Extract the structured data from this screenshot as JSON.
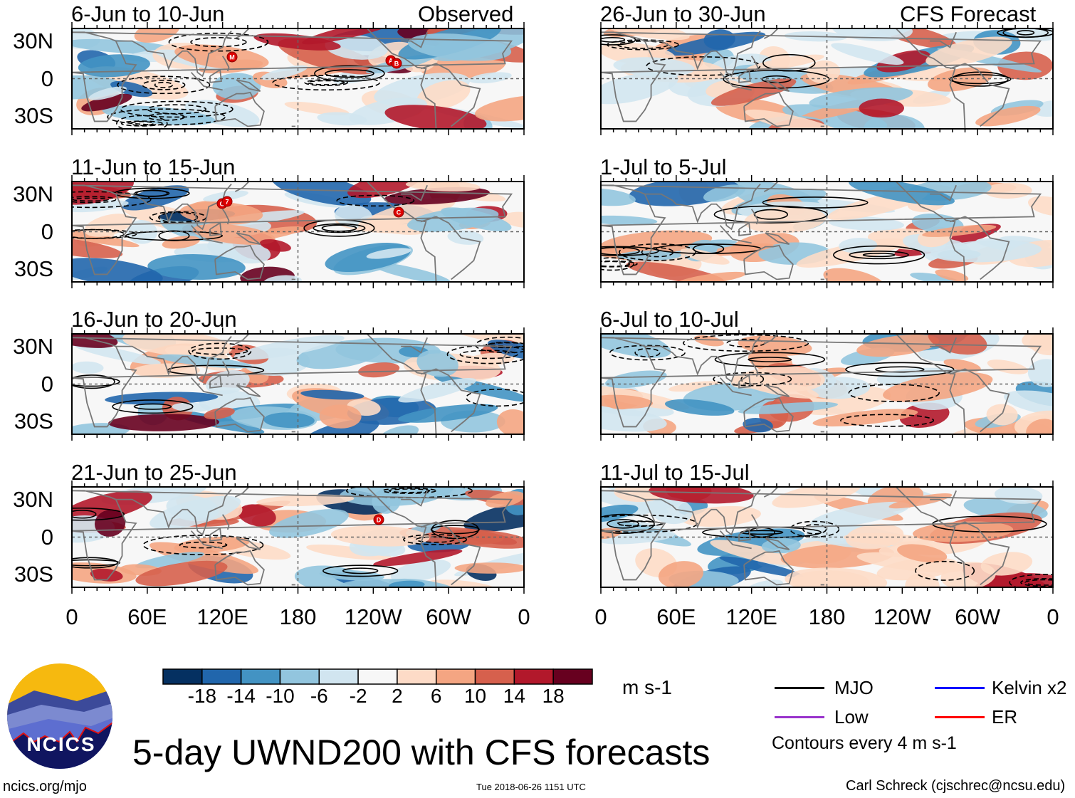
{
  "chart_data": {
    "type": "heatmap",
    "title": "5-day UWND200 with CFS forecasts",
    "variable": "UWND200",
    "units": "m s-1",
    "columns": [
      {
        "label": "Observed",
        "panels": [
          {
            "title": "6-Jun to 10-Jun",
            "storms": [
              "M",
              "A",
              "B"
            ]
          },
          {
            "title": "11-Jun to 15-Jun",
            "storms": [
              "G",
              "7",
              "C"
            ]
          },
          {
            "title": "16-Jun to 20-Jun",
            "storms": []
          },
          {
            "title": "21-Jun to 25-Jun",
            "storms": [
              "D"
            ]
          }
        ]
      },
      {
        "label": "CFS Forecast",
        "panels": [
          {
            "title": "26-Jun to 30-Jun",
            "storms": []
          },
          {
            "title": "1-Jul to 5-Jul",
            "storms": []
          },
          {
            "title": "6-Jul to 10-Jul",
            "storms": []
          },
          {
            "title": "11-Jul to 15-Jul",
            "storms": []
          }
        ]
      }
    ],
    "y_tick_labels": [
      "30N",
      "0",
      "30S"
    ],
    "x_tick_labels": [
      "0",
      "60E",
      "120E",
      "180",
      "120W",
      "60W",
      "0"
    ],
    "colorbar": {
      "labels": [
        "-18",
        "-14",
        "-10",
        "-6",
        "-2",
        "2",
        "6",
        "10",
        "14",
        "18"
      ],
      "colors": [
        "#053061",
        "#2166ac",
        "#4393c3",
        "#92c5de",
        "#d1e5f0",
        "#f7f7f7",
        "#fddbc7",
        "#f4a582",
        "#d6604d",
        "#b2182b",
        "#67001f"
      ],
      "units": "m s-1"
    },
    "legend": [
      {
        "label": "MJO",
        "color": "#000000"
      },
      {
        "label": "Kelvin x2",
        "color": "#0000ff"
      },
      {
        "label": "Low",
        "color": "#9933cc"
      },
      {
        "label": "ER",
        "color": "#ff0000"
      }
    ],
    "contour_note": "Contours every 4 m s-1"
  },
  "logo_text": "NCICS",
  "site": "ncics.org/mjo",
  "timestamp": "Tue 2018-06-26 1151 UTC",
  "author": "Carl Schreck (cjschrec@ncsu.edu)"
}
